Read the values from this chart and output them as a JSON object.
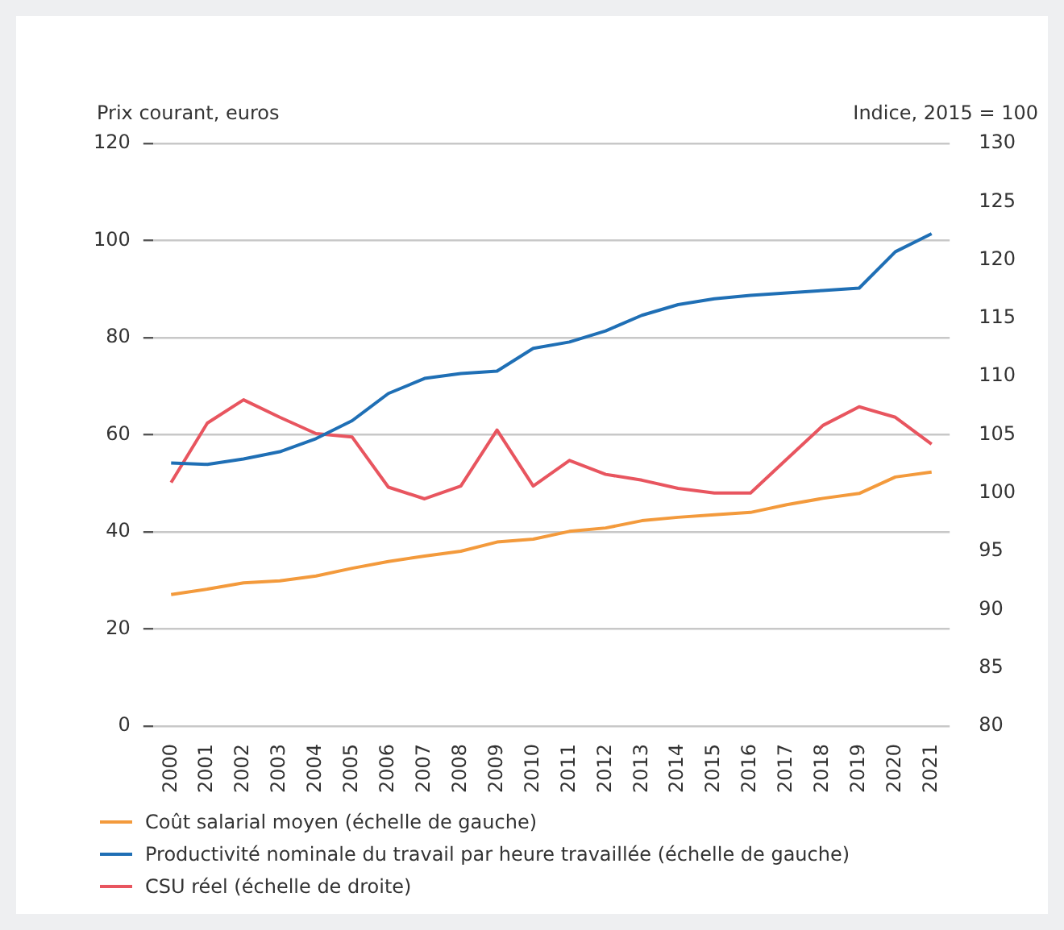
{
  "chart_data": {
    "type": "line",
    "ylabel": "Prix courant, euros",
    "y2label": "Indice, 2015 = 100",
    "categories": [
      "2000",
      "2001",
      "2002",
      "2003",
      "2004",
      "2005",
      "2006",
      "2007",
      "2008",
      "2009",
      "2010",
      "2011",
      "2012",
      "2013",
      "2014",
      "2015",
      "2016",
      "2017",
      "2018",
      "2019",
      "2020",
      "2021"
    ],
    "series": [
      {
        "name": "Coût salarial moyen (échelle de gauche)",
        "color": "#f39a3c",
        "values": [
          27.1,
          28.2,
          29.5,
          29.9,
          30.9,
          32.5,
          33.9,
          35.0,
          36.0,
          37.9,
          38.5,
          40.1,
          40.8,
          42.3,
          43.0,
          43.5,
          44.0,
          45.6,
          46.9,
          47.9,
          51.3,
          52.3
        ]
      },
      {
        "name": "Productivité nominale du travail par heure travaillée (échelle de gauche)",
        "color": "#1f6fb5",
        "values": [
          54.2,
          53.9,
          55.0,
          56.5,
          59.2,
          62.9,
          68.5,
          71.6,
          72.6,
          73.1,
          77.8,
          79.1,
          81.4,
          84.6,
          86.8,
          88.0,
          88.7,
          89.2,
          89.7,
          90.2,
          97.7,
          101.4
        ]
      },
      {
        "name": "CSU réel (échelle de droite)",
        "color": "#e8555f",
        "axis": "y2",
        "values": [
          100.9,
          106.0,
          108.0,
          106.5,
          105.1,
          104.8,
          100.5,
          99.5,
          100.6,
          105.4,
          100.6,
          102.8,
          101.6,
          101.1,
          100.4,
          100.0,
          100.0,
          102.9,
          105.8,
          107.4,
          106.5,
          104.2
        ]
      }
    ],
    "ylim": [
      0,
      120
    ],
    "yticks": [
      0,
      20,
      40,
      60,
      80,
      100,
      120
    ],
    "y2lim": [
      80,
      130
    ],
    "y2ticks": [
      80,
      85,
      90,
      95,
      100,
      105,
      110,
      115,
      120,
      125,
      130
    ],
    "grid": "y",
    "legend": "bottom",
    "marker": "none",
    "line_style": "solid"
  }
}
